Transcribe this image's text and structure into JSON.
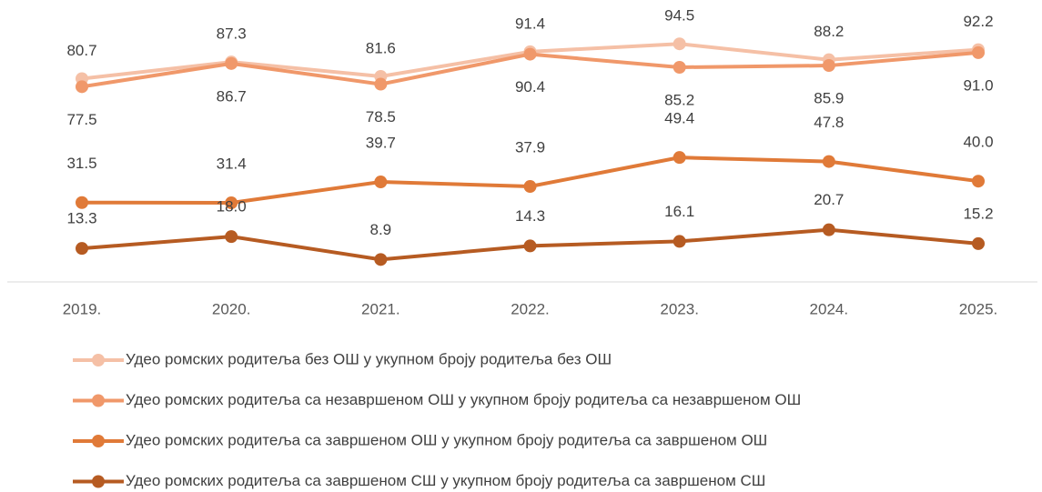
{
  "chart_data": {
    "type": "line",
    "categories": [
      "2019.",
      "2020.",
      "2021.",
      "2022.",
      "2023.",
      "2024.",
      "2025."
    ],
    "series": [
      {
        "name": "Удео ромских родитеља без ОШ у укупном броју родитеља без ОШ",
        "color": "#f5c0a6",
        "values": [
          80.7,
          87.3,
          81.6,
          91.4,
          94.5,
          88.2,
          92.2
        ],
        "value_labels": [
          "80.7",
          "87.3",
          "81.6",
          "91.4",
          "94.5",
          "88.2",
          "92.2"
        ]
      },
      {
        "name": "Удео ромских родитеља са незавршеном ОШ у укупном броју родитеља са незавршеном ОШ",
        "color": "#f0986a",
        "values": [
          77.5,
          86.7,
          78.5,
          90.4,
          85.2,
          85.9,
          91.0
        ],
        "value_labels": [
          "77.5",
          "86.7",
          "78.5",
          "90.4",
          "85.2",
          "85.9",
          "91.0"
        ]
      },
      {
        "name": "Удео ромских родитеља са завршеном ОШ у укупном броју родитеља са завршеном ОШ",
        "color": "#e07a38",
        "values": [
          31.5,
          31.4,
          39.7,
          37.9,
          49.4,
          47.8,
          40.0
        ],
        "value_labels": [
          "31.5",
          "31.4",
          "39.7",
          "37.9",
          "49.4",
          "47.8",
          "40.0"
        ]
      },
      {
        "name": "Удео ромских родитеља са завршеном СШ у укупном броју родитеља са завршеном СШ",
        "color": "#b65b22",
        "values": [
          13.3,
          18.0,
          8.9,
          14.3,
          16.1,
          20.7,
          15.2
        ],
        "value_labels": [
          "13.3",
          "18.0",
          "8.9",
          "14.3",
          "16.1",
          "20.7",
          "15.2"
        ]
      }
    ],
    "ylim": [
      0,
      100
    ]
  }
}
